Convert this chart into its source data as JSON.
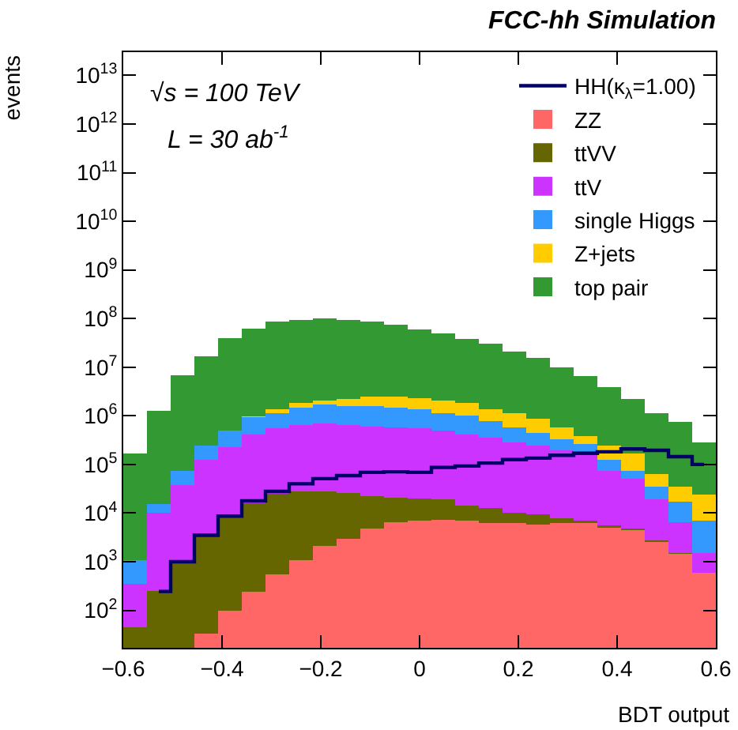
{
  "chart_data": {
    "type": "bar",
    "title": "FCC-hh Simulation",
    "xlabel": "BDT output",
    "ylabel": "events",
    "annotations": [
      "√s = 100 TeV",
      "L = 30 ab$^{-1}$"
    ],
    "x": [
      -0.576,
      -0.528,
      -0.48,
      -0.432,
      -0.384,
      -0.336,
      -0.288,
      -0.24,
      -0.192,
      -0.144,
      -0.096,
      -0.048,
      0,
      0.048,
      0.096,
      0.144,
      0.192,
      0.24,
      0.288,
      0.336,
      0.384,
      0.432,
      0.48,
      0.528,
      0.576
    ],
    "stacked": true,
    "log": "y",
    "grid": false,
    "legend": "top right",
    "series": [
      {
        "name": "HH(κ$_{λ}$=1.00)",
        "type": "step",
        "color": "#000066",
        "values": [
          null,
          245,
          1000,
          3500,
          8700,
          17800,
          28000,
          40000,
          51000,
          59000,
          69000,
          71000,
          69000,
          87000,
          93000,
          107000,
          126000,
          135000,
          155000,
          170000,
          182000,
          209000,
          195000,
          145000,
          100000
        ]
      },
      {
        "name": "ZZ",
        "color": "#ff6666",
        "values": [
          null,
          null,
          null,
          33,
          100,
          245,
          550,
          1070,
          2100,
          3000,
          4800,
          6500,
          6900,
          7400,
          6900,
          6300,
          6300,
          5900,
          6300,
          6300,
          5000,
          4400,
          2600,
          1450,
          590
        ]
      },
      {
        "name": "ttVV",
        "color": "#666600",
        "values": [
          45,
          250,
          1000,
          3300,
          8600,
          15600,
          24000,
          27000,
          26000,
          23000,
          17600,
          14400,
          13000,
          12000,
          7600,
          6300,
          3700,
          3400,
          1600,
          600,
          600,
          400,
          200,
          50,
          null
        ]
      },
      {
        "name": "ttV",
        "color": "#cc33ff",
        "values": [
          310,
          9800,
          37000,
          123000,
          215000,
          391000,
          525000,
          618000,
          664000,
          620000,
          580000,
          568000,
          530000,
          480000,
          392000,
          342000,
          272000,
          236000,
          187000,
          163000,
          68000,
          46000,
          16700,
          5000,
          950
        ]
      },
      {
        "name": "single Higgs",
        "color": "#3399ff",
        "values": [
          720,
          5500,
          36000,
          119000,
          276000,
          526000,
          600000,
          800000,
          1000000,
          940000,
          980000,
          860000,
          800000,
          650000,
          593000,
          439000,
          307000,
          202000,
          136000,
          93000,
          52000,
          23000,
          16000,
          10500,
          5350
        ]
      },
      {
        "name": "Z+jets",
        "color": "#ffcc00",
        "values": [
          null,
          null,
          null,
          null,
          null,
          50000,
          200000,
          370000,
          390000,
          660000,
          870000,
          1000000,
          940000,
          940000,
          820000,
          556000,
          560000,
          424000,
          258000,
          117000,
          119000,
          96000,
          29000,
          18500,
          17600
        ]
      },
      {
        "name": "top pair",
        "color": "#339933",
        "values": [
          170000,
          1240000,
          6800000,
          16700000,
          39000000,
          62000000,
          86000000,
          91000000,
          98000000,
          91000000,
          85000000,
          72000000,
          57000000,
          47000000,
          36000000,
          29000000,
          20000000,
          14600000,
          9400000,
          6100000,
          3600000,
          2070000,
          1090000,
          706000,
          257000
        ]
      }
    ],
    "xlim": [
      -0.6,
      0.6
    ],
    "xticks": [
      {
        "value": -0.6,
        "label": "−0.6"
      },
      {
        "value": -0.4,
        "label": "−0.4"
      },
      {
        "value": -0.2,
        "label": "−0.2"
      },
      0,
      0.2,
      0.4,
      0.6
    ],
    "ylim": [
      17,
      30000000000000
    ],
    "yticks": [
      {
        "value": 100,
        "label": "10$^{2}$"
      },
      {
        "value": 1000,
        "label": "10$^{3}$"
      },
      {
        "value": 10000,
        "label": "10$^{4}$"
      },
      {
        "value": 100000,
        "label": "10$^{5}$"
      },
      {
        "value": 1000000,
        "label": "10$^{6}$"
      },
      {
        "value": 10000000,
        "label": "10$^{7}$"
      },
      {
        "value": 100000000,
        "label": "10$^{8}$"
      },
      {
        "value": 1000000000,
        "label": "10$^{9}$"
      },
      {
        "value": 10000000000,
        "label": "10$^{10}$"
      },
      {
        "value": 100000000000,
        "label": "10$^{11}$"
      },
      {
        "value": 1000000000000,
        "label": "10$^{12}$"
      },
      {
        "value": 10000000000000,
        "label": "10$^{13}$"
      }
    ]
  }
}
